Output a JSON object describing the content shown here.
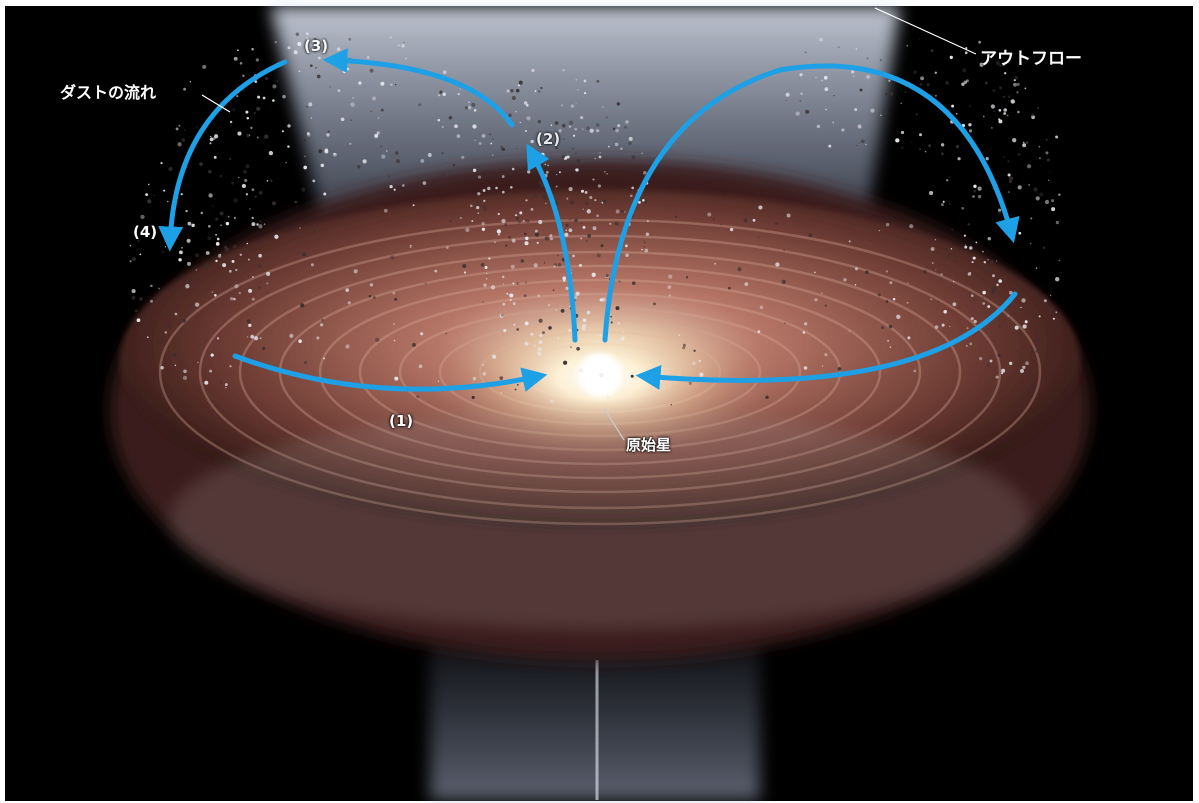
{
  "labels": {
    "outflow": "アウトフロー",
    "dust_flow": "ダストの流れ",
    "protostar": "原始星",
    "step_1": "(1)",
    "step_2": "(2)",
    "step_3": "(3)",
    "step_4": "(4)"
  },
  "colors": {
    "background": "#000000",
    "frame": "#ffffff",
    "arrow": "#1ea0e6",
    "disk": "#8a5648",
    "outflow": "#b8c4dc",
    "star_core": "#fff8e0"
  }
}
